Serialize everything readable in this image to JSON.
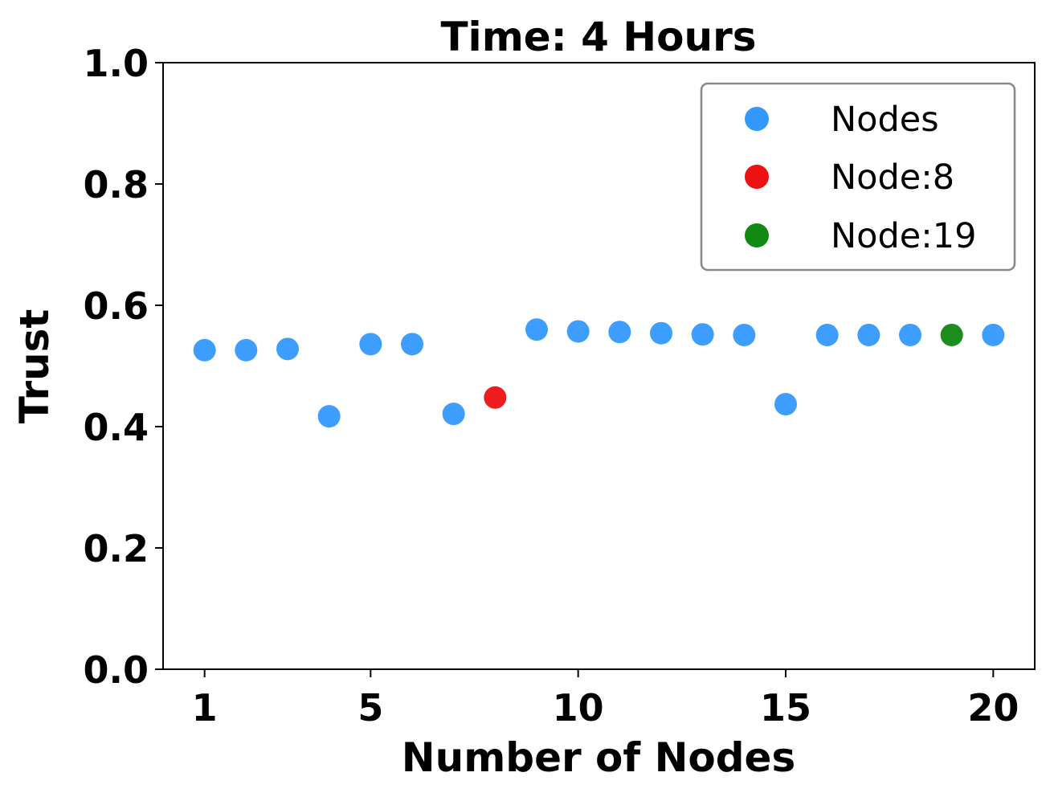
{
  "chart_data": {
    "type": "scatter",
    "title": "Time: 4 Hours",
    "xlabel": "Number of Nodes",
    "ylabel": "Trust",
    "xlim": [
      0.0,
      21.0
    ],
    "ylim": [
      0.0,
      1.0
    ],
    "xticks": [
      1,
      5,
      10,
      15,
      20
    ],
    "yticks": [
      "0.0",
      "0.2",
      "0.4",
      "0.6",
      "0.8",
      "1.0"
    ],
    "grid": false,
    "legend_position": "top-right",
    "series": [
      {
        "name": "Nodes",
        "color": "#3399ff",
        "x": [
          1,
          2,
          3,
          4,
          5,
          6,
          7,
          9,
          10,
          11,
          12,
          13,
          14,
          15,
          16,
          17,
          18,
          20
        ],
        "y": [
          0.526,
          0.526,
          0.528,
          0.417,
          0.536,
          0.536,
          0.421,
          0.56,
          0.557,
          0.556,
          0.554,
          0.552,
          0.551,
          0.437,
          0.551,
          0.551,
          0.551,
          0.551
        ]
      },
      {
        "name": "Node:8",
        "color": "#ee1111",
        "x": [
          8
        ],
        "y": [
          0.448
        ]
      },
      {
        "name": "Node:19",
        "color": "#118811",
        "x": [
          19
        ],
        "y": [
          0.551
        ]
      }
    ]
  }
}
